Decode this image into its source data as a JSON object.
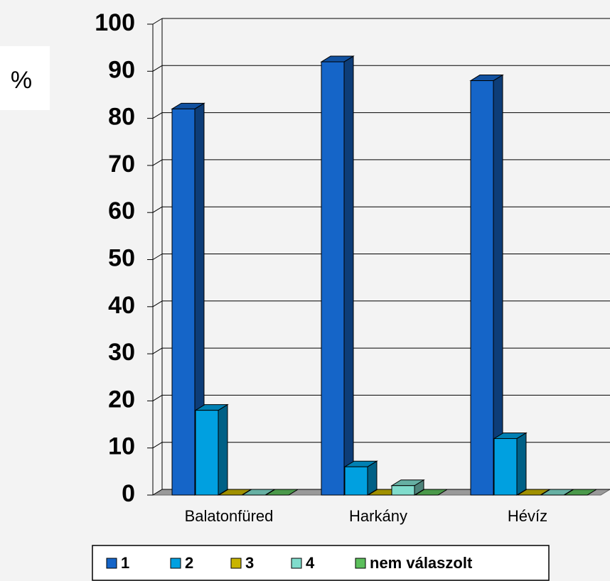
{
  "chart_data": {
    "type": "bar3d",
    "y_label": "%",
    "categories": [
      "Balatonfüred",
      "Harkány",
      "Hévíz"
    ],
    "series": [
      {
        "name": "1",
        "color": "#1565c8",
        "values": [
          82,
          92,
          88
        ]
      },
      {
        "name": "2",
        "color": "#00a0e0",
        "values": [
          18,
          6,
          12
        ]
      },
      {
        "name": "3",
        "color": "#c8b400",
        "values": [
          0,
          0,
          0
        ]
      },
      {
        "name": "4",
        "color": "#80dccc",
        "values": [
          0,
          2,
          0
        ]
      },
      {
        "name": "nem válaszolt",
        "color": "#5cbf5c",
        "values": [
          0,
          0,
          0
        ]
      }
    ],
    "ylim": [
      0,
      100
    ],
    "yticks": [
      0,
      10,
      20,
      30,
      40,
      50,
      60,
      70,
      80,
      90,
      100
    ],
    "grid": true,
    "legend": "bottom"
  }
}
